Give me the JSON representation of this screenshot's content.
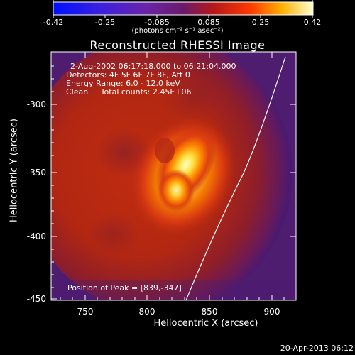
{
  "colorbar": {
    "tick_labels": [
      "-0.42",
      "-0.25",
      "-0.085",
      "0.085",
      "0.25",
      "0.42"
    ],
    "units": "(photons cm⁻² s⁻¹ asec⁻²)"
  },
  "title": "Reconstructed RHESSI Image",
  "info": {
    "line1": "2-Aug-2002 06:17:18.000 to 06:21:04.000",
    "line2": "Detectors: 4F 5F 6F 7F 8F, Att 0",
    "line3": "Energy Range: 6.0 - 12.0 keV",
    "line4": "Clean     Total counts: 2.45E+06"
  },
  "x_axis": {
    "label": "Heliocentric X (arcsec)",
    "ticks": [
      "750",
      "800",
      "850",
      "900"
    ]
  },
  "y_axis": {
    "label": "Heliocentric Y (arcsec)",
    "ticks": [
      "-300",
      "-350",
      "-400",
      "-450"
    ]
  },
  "peak_text": "Position of Peak = [839,-347]",
  "timestamp": "20-Apr-2013 06:12",
  "colors": {
    "background": "#000000",
    "frame": "#ffffff",
    "limb_line": "#ffffff"
  }
}
